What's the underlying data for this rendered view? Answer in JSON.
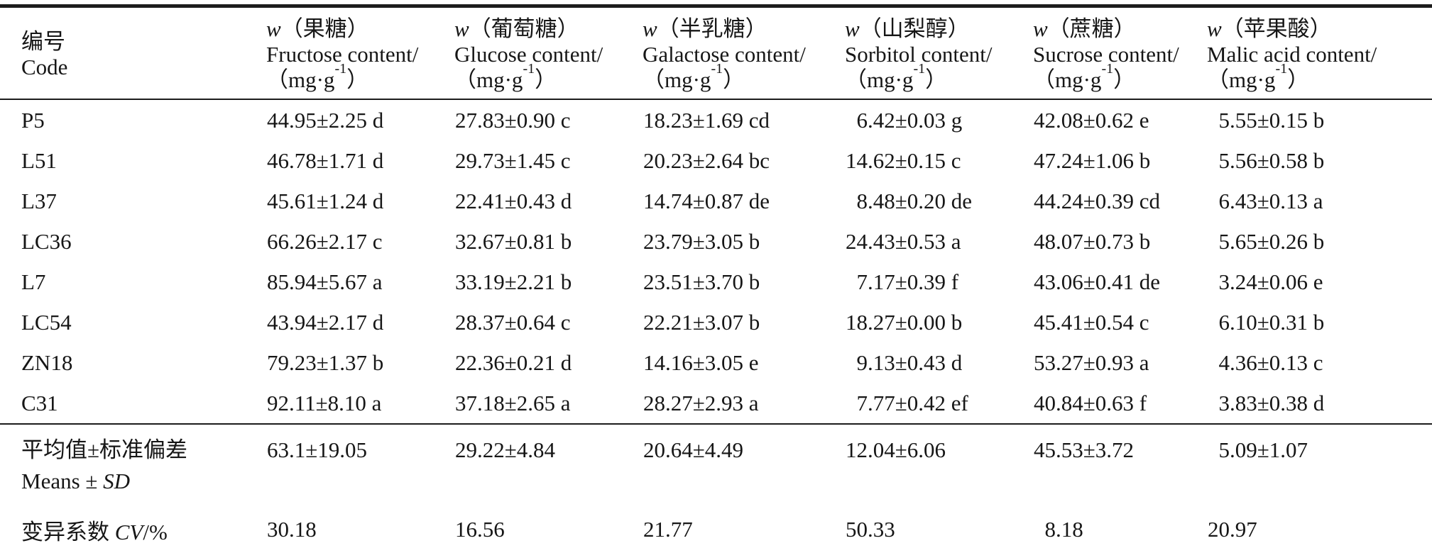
{
  "page": {
    "background": "#ffffff",
    "text_color": "#161616",
    "rule_color": "#1c1c1c"
  },
  "table": {
    "code_header": {
      "zh": "编号",
      "en": "Code"
    },
    "columns": [
      {
        "symbol": "w",
        "name_zh": "（果糖）",
        "name_en": "Fructose content/"
      },
      {
        "symbol": "w",
        "name_zh": "（葡萄糖）",
        "name_en": "Glucose content/"
      },
      {
        "symbol": "w",
        "name_zh": "（半乳糖）",
        "name_en": "Galactose content/"
      },
      {
        "symbol": "w",
        "name_zh": "（山梨醇）",
        "name_en": "Sorbitol content/"
      },
      {
        "symbol": "w",
        "name_zh": "（蔗糖）",
        "name_en": "Sucrose content/"
      },
      {
        "symbol": "w",
        "name_zh": "（苹果酸）",
        "name_en": "Malic acid content/"
      }
    ],
    "unit": {
      "prefix": "（mg·g",
      "sup": "-1",
      "suffix": "）"
    },
    "rows": [
      {
        "code": "P5",
        "values": [
          "44.95±2.25 d",
          "27.83±0.90 c",
          "18.23±1.69 cd",
          "6.42±0.03 g",
          "42.08±0.62 e",
          "5.55±0.15 b"
        ]
      },
      {
        "code": "L51",
        "values": [
          "46.78±1.71 d",
          "29.73±1.45 c",
          "20.23±2.64 bc",
          "14.62±0.15 c",
          "47.24±1.06 b",
          "5.56±0.58 b"
        ]
      },
      {
        "code": "L37",
        "values": [
          "45.61±1.24 d",
          "22.41±0.43 d",
          "14.74±0.87 de",
          "8.48±0.20 de",
          "44.24±0.39 cd",
          "6.43±0.13 a"
        ]
      },
      {
        "code": "LC36",
        "values": [
          "66.26±2.17 c",
          "32.67±0.81 b",
          "23.79±3.05 b",
          "24.43±0.53 a",
          "48.07±0.73 b",
          "5.65±0.26 b"
        ]
      },
      {
        "code": "L7",
        "values": [
          "85.94±5.67 a",
          "33.19±2.21 b",
          "23.51±3.70 b",
          "7.17±0.39 f",
          "43.06±0.41 de",
          "3.24±0.06 e"
        ]
      },
      {
        "code": "LC54",
        "values": [
          "43.94±2.17 d",
          "28.37±0.64 c",
          "22.21±3.07 b",
          "18.27±0.00 b",
          "45.41±0.54 c",
          "6.10±0.31 b"
        ]
      },
      {
        "code": "ZN18",
        "values": [
          "79.23±1.37 b",
          "22.36±0.21 d",
          "14.16±3.05 e",
          "9.13±0.43 d",
          "53.27±0.93 a",
          "4.36±0.13 c"
        ]
      },
      {
        "code": "C31",
        "values": [
          "92.11±8.10 a",
          "37.18±2.65 a",
          "28.27±2.93 a",
          "7.77±0.42 ef",
          "40.84±0.63 f",
          "3.83±0.38 d"
        ]
      }
    ],
    "means_row": {
      "label_zh": "平均值±标准偏差",
      "label_en_prefix": "Means ± ",
      "label_en_italic": "SD",
      "values": [
        "63.1±19.05",
        "29.22±4.84",
        "20.64±4.49",
        "12.04±6.06",
        "45.53±3.72",
        "5.09±1.07"
      ]
    },
    "cv_row": {
      "label_zh": "变异系数 ",
      "label_italic": "CV",
      "label_suffix": "/%",
      "values": [
        "30.18",
        "16.56",
        "21.77",
        "50.33",
        "8.18",
        "20.97"
      ]
    }
  }
}
